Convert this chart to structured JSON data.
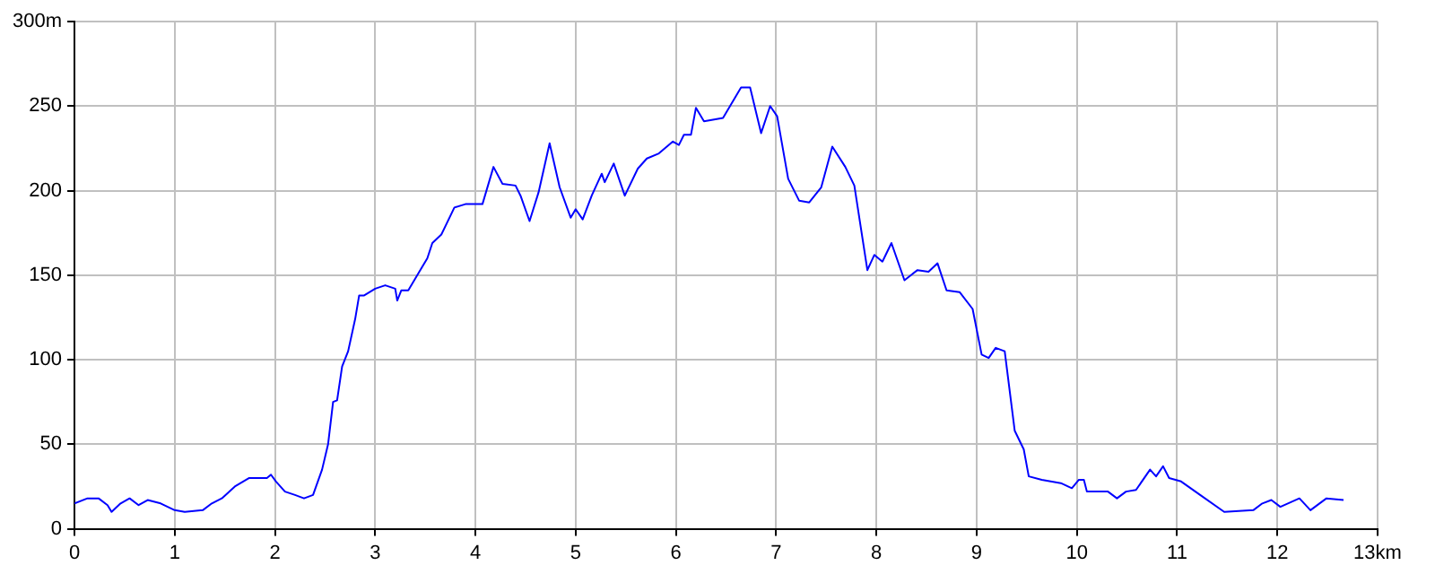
{
  "chart_data": {
    "type": "line",
    "grid": true,
    "legend": false,
    "marker": "none",
    "line_style": "solid",
    "xlim": [
      0,
      13
    ],
    "xticks": [
      0,
      1,
      2,
      3,
      4,
      5,
      6,
      7,
      8,
      9,
      10,
      11,
      12,
      {
        "value": 13,
        "label": "13km"
      }
    ],
    "ylim": [
      0,
      300
    ],
    "yticks": [
      0,
      50,
      100,
      150,
      200,
      250,
      {
        "value": 300,
        "label": "300m"
      }
    ],
    "series": [
      {
        "color": "#0000ff",
        "x": [
          0,
          0.13,
          0.24,
          0.33,
          0.37,
          0.46,
          0.55,
          0.64,
          0.73,
          0.86,
          1.0,
          1.1,
          1.28,
          1.37,
          1.47,
          1.6,
          1.74,
          1.92,
          1.96,
          2.01,
          2.1,
          2.2,
          2.29,
          2.38,
          2.47,
          2.53,
          2.58,
          2.62,
          2.67,
          2.73,
          2.8,
          2.84,
          2.89,
          3.0,
          3.1,
          3.2,
          3.22,
          3.26,
          3.33,
          3.44,
          3.52,
          3.57,
          3.66,
          3.79,
          3.9,
          4.07,
          4.18,
          4.27,
          4.4,
          4.45,
          4.54,
          4.63,
          4.74,
          4.84,
          4.95,
          5.0,
          5.07,
          5.16,
          5.26,
          5.29,
          5.38,
          5.49,
          5.62,
          5.71,
          5.83,
          5.97,
          6.03,
          6.08,
          6.15,
          6.2,
          6.28,
          6.47,
          6.65,
          6.74,
          6.85,
          6.94,
          7.01,
          7.12,
          7.23,
          7.33,
          7.45,
          7.56,
          7.69,
          7.78,
          7.91,
          7.98,
          8.06,
          8.15,
          8.28,
          8.41,
          8.52,
          8.61,
          8.7,
          8.83,
          8.96,
          9.05,
          9.12,
          9.19,
          9.28,
          9.38,
          9.47,
          9.52,
          9.65,
          9.84,
          9.95,
          10.02,
          10.07,
          10.1,
          10.22,
          10.31,
          10.4,
          10.49,
          10.59,
          10.73,
          10.79,
          10.86,
          10.92,
          11.04,
          11.23,
          11.47,
          11.76,
          11.85,
          11.94,
          12.03,
          12.22,
          12.33,
          12.49,
          12.66
        ],
        "values": [
          15,
          18,
          18,
          14,
          10,
          15,
          18,
          14,
          17,
          15,
          11,
          10,
          11,
          15,
          18,
          25,
          30,
          30,
          32,
          28,
          22,
          20,
          18,
          20,
          35,
          50,
          75,
          76,
          96,
          105,
          124,
          138,
          138,
          142,
          144,
          142,
          135,
          141,
          141,
          152,
          160,
          169,
          174,
          190,
          192,
          192,
          214,
          204,
          203,
          197,
          182,
          199,
          228,
          202,
          184,
          189,
          183,
          197,
          210,
          205,
          216,
          197,
          213,
          219,
          222,
          229,
          227,
          233,
          233,
          249,
          241,
          243,
          261,
          261,
          234,
          250,
          244,
          207,
          194,
          193,
          202,
          226,
          214,
          203,
          153,
          162,
          158,
          169,
          147,
          153,
          152,
          157,
          141,
          140,
          130,
          103,
          101,
          107,
          105,
          58,
          47,
          31,
          29,
          27,
          24,
          29,
          29,
          22,
          22,
          22,
          18,
          22,
          23,
          35,
          31,
          37,
          30,
          28,
          20,
          10,
          11,
          15,
          17,
          13,
          18,
          11,
          18,
          17
        ]
      }
    ]
  }
}
